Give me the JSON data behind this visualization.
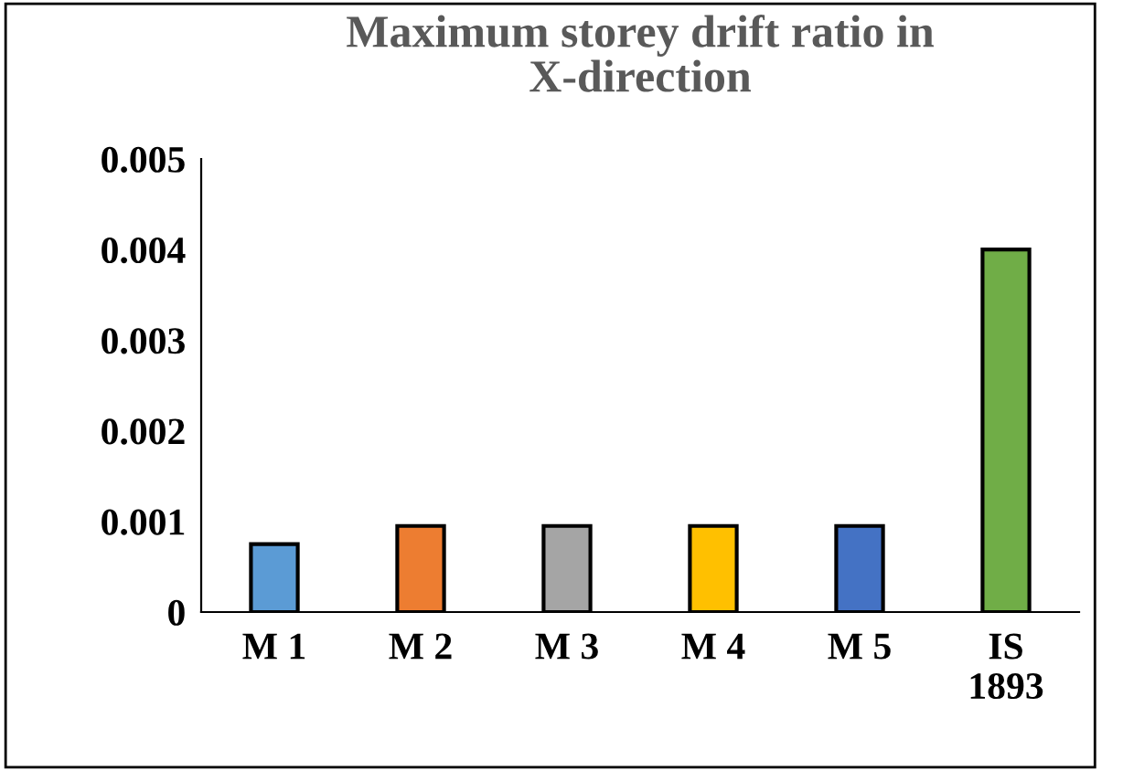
{
  "chart_data": {
    "type": "bar",
    "title": "Maximum storey drift ratio in\nX-direction",
    "categories": [
      "M 1",
      "M 2",
      "M 3",
      "M 4",
      "M 5",
      "IS\n1893"
    ],
    "values": [
      0.00075,
      0.00095,
      0.00095,
      0.00095,
      0.00095,
      0.004
    ],
    "colors": [
      "#5b9bd5",
      "#ed7d31",
      "#a5a5a5",
      "#ffc000",
      "#4472c4",
      "#70ad47"
    ],
    "ylim": [
      0,
      0.005
    ],
    "yticks": [
      0,
      0.001,
      0.002,
      0.003,
      0.004,
      0.005
    ],
    "grid": false,
    "legend": false
  }
}
